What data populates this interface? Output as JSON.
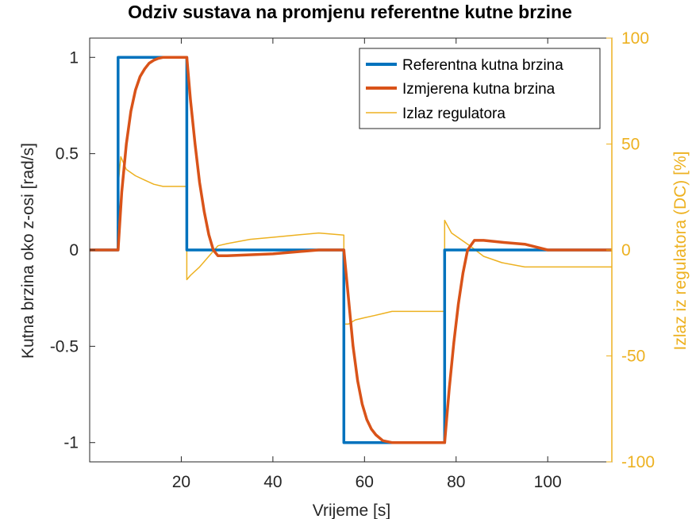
{
  "chart_data": {
    "type": "line",
    "title": "Odziv sustava na promjenu referentne kutne brzine",
    "xlabel": "Vrijeme [s]",
    "ylabel_left": "Kutna brzina oko z-osi [rad/s]",
    "ylabel_right": "Izlaz iz regulatora (DC) [%]",
    "xlim": [
      0,
      114
    ],
    "ylim_left": [
      -1.1,
      1.1
    ],
    "ylim_right": [
      -100,
      100
    ],
    "x_ticks": [
      "20",
      "40",
      "60",
      "80",
      "100"
    ],
    "x_tick_values": [
      20,
      40,
      60,
      80,
      100
    ],
    "y_left_ticks": [
      "1",
      "0.5",
      "0",
      "-0.5",
      "-1"
    ],
    "y_left_tick_values": [
      1,
      0.5,
      0,
      -0.5,
      -1
    ],
    "y_right_ticks": [
      "100",
      "50",
      "0",
      "-50",
      "-100"
    ],
    "y_right_tick_values": [
      100,
      50,
      0,
      -50,
      -100
    ],
    "grid": false,
    "legend_position": "top-right",
    "series": [
      {
        "name": "Referentna kutna brzina",
        "axis": "left",
        "color": "#0072BD",
        "x": [
          0,
          6.2,
          6.2,
          21.2,
          21.2,
          55.5,
          55.5,
          77.5,
          77.5,
          114
        ],
        "y": [
          0,
          0,
          1,
          1,
          0,
          0,
          -1,
          -1,
          0,
          0
        ]
      },
      {
        "name": "Izmjerena kutna brzina",
        "axis": "left",
        "color": "#D95319",
        "x": [
          0,
          6.2,
          7,
          8,
          9,
          10,
          11,
          12,
          13,
          14,
          15,
          16,
          18,
          21.2,
          22,
          23,
          24,
          25,
          26,
          27,
          28,
          30,
          40,
          50,
          55.5,
          56.5,
          57.5,
          58.5,
          59.5,
          60.5,
          61.5,
          62.5,
          64,
          66,
          70,
          77.5,
          78.5,
          79.5,
          80.5,
          81.5,
          82.5,
          84,
          86,
          90,
          95,
          100,
          114
        ],
        "y": [
          0,
          0,
          0.3,
          0.55,
          0.72,
          0.83,
          0.9,
          0.94,
          0.97,
          0.985,
          0.995,
          1,
          1,
          1,
          0.78,
          0.55,
          0.35,
          0.2,
          0.08,
          0.0,
          -0.03,
          -0.03,
          -0.02,
          0.0,
          0.0,
          -0.25,
          -0.5,
          -0.68,
          -0.8,
          -0.88,
          -0.93,
          -0.96,
          -0.99,
          -1.0,
          -1.0,
          -1.0,
          -0.72,
          -0.48,
          -0.28,
          -0.12,
          0.0,
          0.05,
          0.05,
          0.04,
          0.03,
          0.0,
          0.0
        ]
      },
      {
        "name": "Izlaz regulatora",
        "axis": "right",
        "color": "#EDB120",
        "x": [
          0,
          6.2,
          6.2,
          6.8,
          8,
          10,
          12,
          14,
          16,
          21.2,
          21.2,
          22,
          24,
          26,
          28,
          30,
          35,
          40,
          45,
          50,
          55.5,
          55.5,
          56.5,
          58,
          60,
          62,
          64,
          66,
          70,
          77.5,
          77.5,
          78,
          79,
          81,
          83,
          86,
          90,
          95,
          100,
          114
        ],
        "y": [
          0,
          0,
          30,
          44,
          38,
          35,
          33,
          31,
          30,
          30,
          -14,
          -12,
          -8,
          -3,
          2,
          3,
          5,
          6,
          7,
          8,
          7,
          -35,
          -35,
          -33,
          -32,
          -31,
          -30,
          -29,
          -29,
          -29,
          14,
          12,
          8,
          5,
          2,
          -3,
          -6,
          -8,
          -8,
          -8
        ]
      }
    ]
  }
}
